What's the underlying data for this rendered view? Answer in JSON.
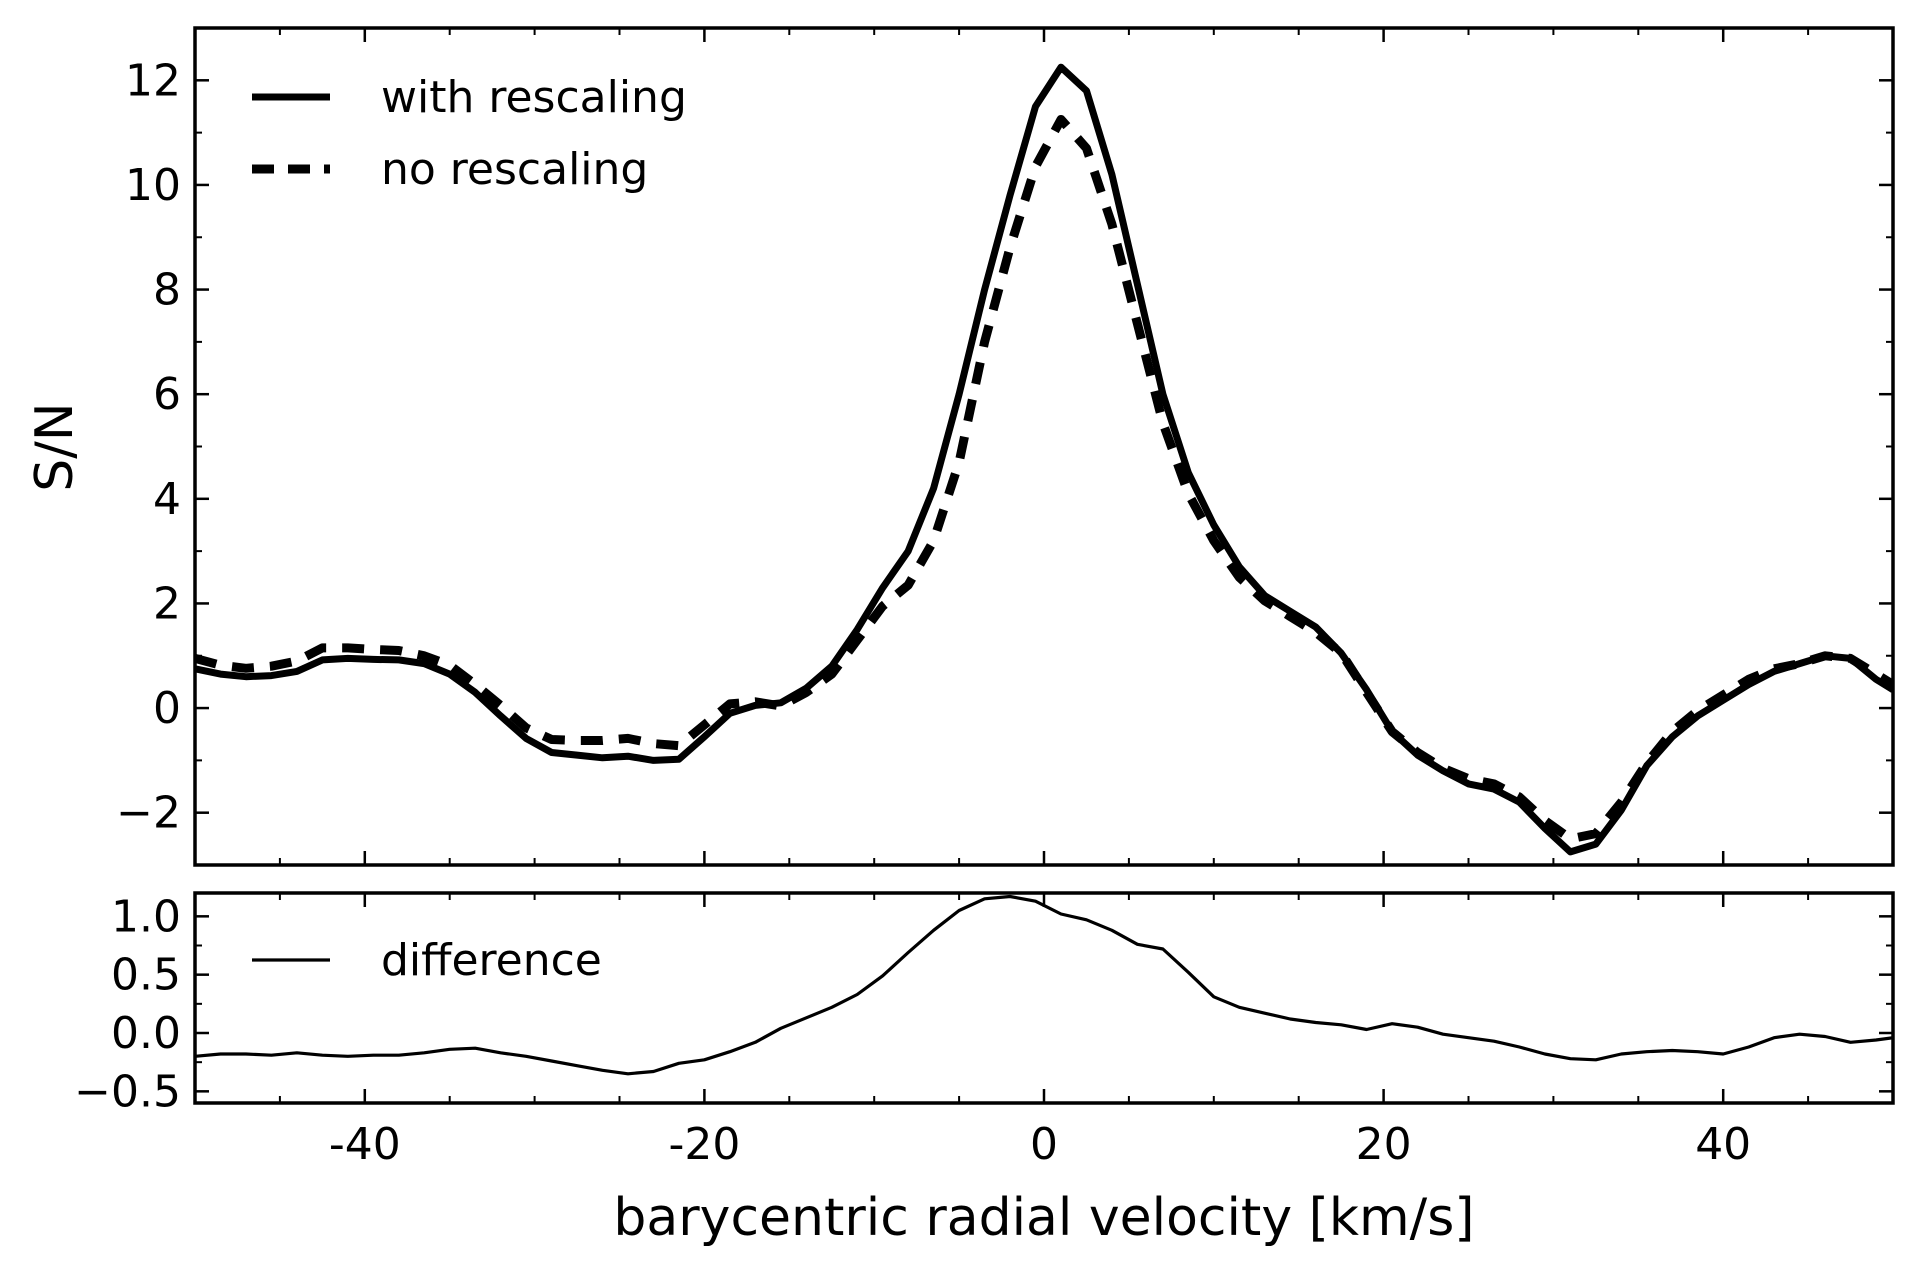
{
  "chart_data": [
    {
      "type": "line",
      "xlim": [
        -50,
        50
      ],
      "ylim": [
        -3,
        13
      ],
      "xlabel": "",
      "ylabel": "S/N",
      "xticks": [
        -40,
        -20,
        0,
        20,
        40
      ],
      "xtick_labels": [
        "",
        "",
        "",
        "",
        ""
      ],
      "yticks": [
        -2,
        0,
        2,
        4,
        6,
        8,
        10,
        12
      ],
      "ytick_labels": [
        "−2",
        "0",
        "2",
        "4",
        "6",
        "8",
        "10",
        "12"
      ],
      "grid": false,
      "legend_position": "top-left",
      "series": [
        {
          "name": "with rescaling",
          "style": "solid",
          "x": [
            -50,
            -48.5,
            -47,
            -45.5,
            -44,
            -42.5,
            -41,
            -39.5,
            -38,
            -36.5,
            -35,
            -33.5,
            -32,
            -30.5,
            -29,
            -27.5,
            -26,
            -24.5,
            -23,
            -21.5,
            -20,
            -18.5,
            -17,
            -15.5,
            -14,
            -12.5,
            -11,
            -9.5,
            -8,
            -6.5,
            -5,
            -3.5,
            -2,
            -0.5,
            1,
            2.5,
            4,
            5.5,
            7,
            8.5,
            10,
            11.5,
            13,
            14.5,
            16,
            17.5,
            19,
            20.5,
            22,
            23.5,
            25,
            26.5,
            28,
            29.5,
            31,
            32.5,
            34,
            35.5,
            37,
            38.5,
            40,
            41.5,
            43,
            44.5,
            46,
            47.5,
            49,
            50
          ],
          "y": [
            0.75,
            0.65,
            0.6,
            0.62,
            0.7,
            0.92,
            0.95,
            0.93,
            0.92,
            0.85,
            0.65,
            0.3,
            -0.15,
            -0.58,
            -0.85,
            -0.9,
            -0.95,
            -0.92,
            -1.0,
            -0.98,
            -0.55,
            -0.1,
            0.05,
            0.1,
            0.38,
            0.8,
            1.5,
            2.3,
            3.0,
            4.2,
            6.0,
            8.0,
            9.8,
            11.5,
            12.25,
            11.8,
            10.2,
            8.1,
            6.0,
            4.5,
            3.5,
            2.7,
            2.15,
            1.85,
            1.55,
            1.05,
            0.35,
            -0.45,
            -0.9,
            -1.2,
            -1.45,
            -1.55,
            -1.8,
            -2.3,
            -2.75,
            -2.6,
            -1.95,
            -1.1,
            -0.55,
            -0.15,
            0.15,
            0.45,
            0.7,
            0.85,
            1.0,
            0.95,
            0.55,
            0.35
          ]
        },
        {
          "name": "no rescaling",
          "style": "dashed",
          "x": [
            -50,
            -48.5,
            -47,
            -45.5,
            -44,
            -42.5,
            -41,
            -39.5,
            -38,
            -36.5,
            -35,
            -33.5,
            -32,
            -30.5,
            -29,
            -27.5,
            -26,
            -24.5,
            -23,
            -21.5,
            -20,
            -18.5,
            -17,
            -15.5,
            -14,
            -12.5,
            -11,
            -9.5,
            -8,
            -6.5,
            -5,
            -3.5,
            -2,
            -0.5,
            1,
            2.5,
            4,
            5.5,
            7,
            8.5,
            10,
            11.5,
            13,
            14.5,
            16,
            17.5,
            19,
            20.5,
            22,
            23.5,
            25,
            26.5,
            28,
            29.5,
            31,
            32.5,
            34,
            35.5,
            37,
            38.5,
            40,
            41.5,
            43,
            44.5,
            46,
            47.5,
            49,
            50
          ],
          "y": [
            0.95,
            0.82,
            0.76,
            0.8,
            0.9,
            1.15,
            1.15,
            1.12,
            1.1,
            1.0,
            0.82,
            0.45,
            0.05,
            -0.38,
            -0.6,
            -0.62,
            -0.62,
            -0.58,
            -0.68,
            -0.72,
            -0.32,
            0.08,
            0.12,
            0.04,
            0.3,
            0.65,
            1.3,
            1.95,
            2.35,
            3.2,
            4.7,
            7.0,
            8.8,
            10.35,
            11.25,
            10.7,
            9.25,
            7.35,
            5.45,
            4.1,
            3.2,
            2.5,
            2.05,
            1.75,
            1.45,
            1.05,
            0.3,
            -0.45,
            -0.85,
            -1.15,
            -1.35,
            -1.45,
            -1.7,
            -2.15,
            -2.5,
            -2.4,
            -1.8,
            -1.05,
            -0.45,
            -0.05,
            0.25,
            0.55,
            0.75,
            0.85,
            1.0,
            0.95,
            0.65,
            0.45
          ]
        }
      ]
    },
    {
      "type": "line",
      "xlim": [
        -50,
        50
      ],
      "ylim": [
        -0.6,
        1.2
      ],
      "xlabel": "barycentric radial velocity [km/s]",
      "ylabel": "",
      "xticks": [
        -40,
        -20,
        0,
        20,
        40
      ],
      "xtick_labels": [
        "-40",
        "-20",
        "0",
        "20",
        "40"
      ],
      "yticks": [
        -0.5,
        0.0,
        0.5,
        1.0
      ],
      "ytick_labels": [
        "−0.5",
        "0.0",
        "0.5",
        "1.0"
      ],
      "grid": false,
      "legend_position": "top-left",
      "series": [
        {
          "name": "difference",
          "style": "solid-thin",
          "x": [
            -50,
            -48.5,
            -47,
            -45.5,
            -44,
            -42.5,
            -41,
            -39.5,
            -38,
            -36.5,
            -35,
            -33.5,
            -32,
            -30.5,
            -29,
            -27.5,
            -26,
            -24.5,
            -23,
            -21.5,
            -20,
            -18.5,
            -17,
            -15.5,
            -14,
            -12.5,
            -11,
            -9.5,
            -8,
            -6.5,
            -5,
            -3.5,
            -2,
            -0.5,
            1,
            2.5,
            4,
            5.5,
            7,
            8.5,
            10,
            11.5,
            13,
            14.5,
            16,
            17.5,
            19,
            20.5,
            22,
            23.5,
            25,
            26.5,
            28,
            29.5,
            31,
            32.5,
            34,
            35.5,
            37,
            38.5,
            40,
            41.5,
            43,
            44.5,
            46,
            47.5,
            49,
            50
          ],
          "y": [
            -0.2,
            -0.18,
            -0.18,
            -0.19,
            -0.17,
            -0.19,
            -0.2,
            -0.19,
            -0.19,
            -0.17,
            -0.14,
            -0.13,
            -0.17,
            -0.2,
            -0.24,
            -0.28,
            -0.32,
            -0.35,
            -0.33,
            -0.26,
            -0.23,
            -0.16,
            -0.08,
            0.04,
            0.13,
            0.22,
            0.33,
            0.49,
            0.69,
            0.88,
            1.05,
            1.15,
            1.17,
            1.13,
            1.02,
            0.97,
            0.88,
            0.76,
            0.72,
            0.52,
            0.31,
            0.22,
            0.17,
            0.12,
            0.09,
            0.07,
            0.03,
            0.08,
            0.05,
            -0.01,
            -0.04,
            -0.07,
            -0.12,
            -0.18,
            -0.22,
            -0.23,
            -0.18,
            -0.16,
            -0.15,
            -0.16,
            -0.18,
            -0.12,
            -0.04,
            -0.01,
            -0.03,
            -0.08,
            -0.06,
            -0.04
          ]
        }
      ]
    }
  ]
}
